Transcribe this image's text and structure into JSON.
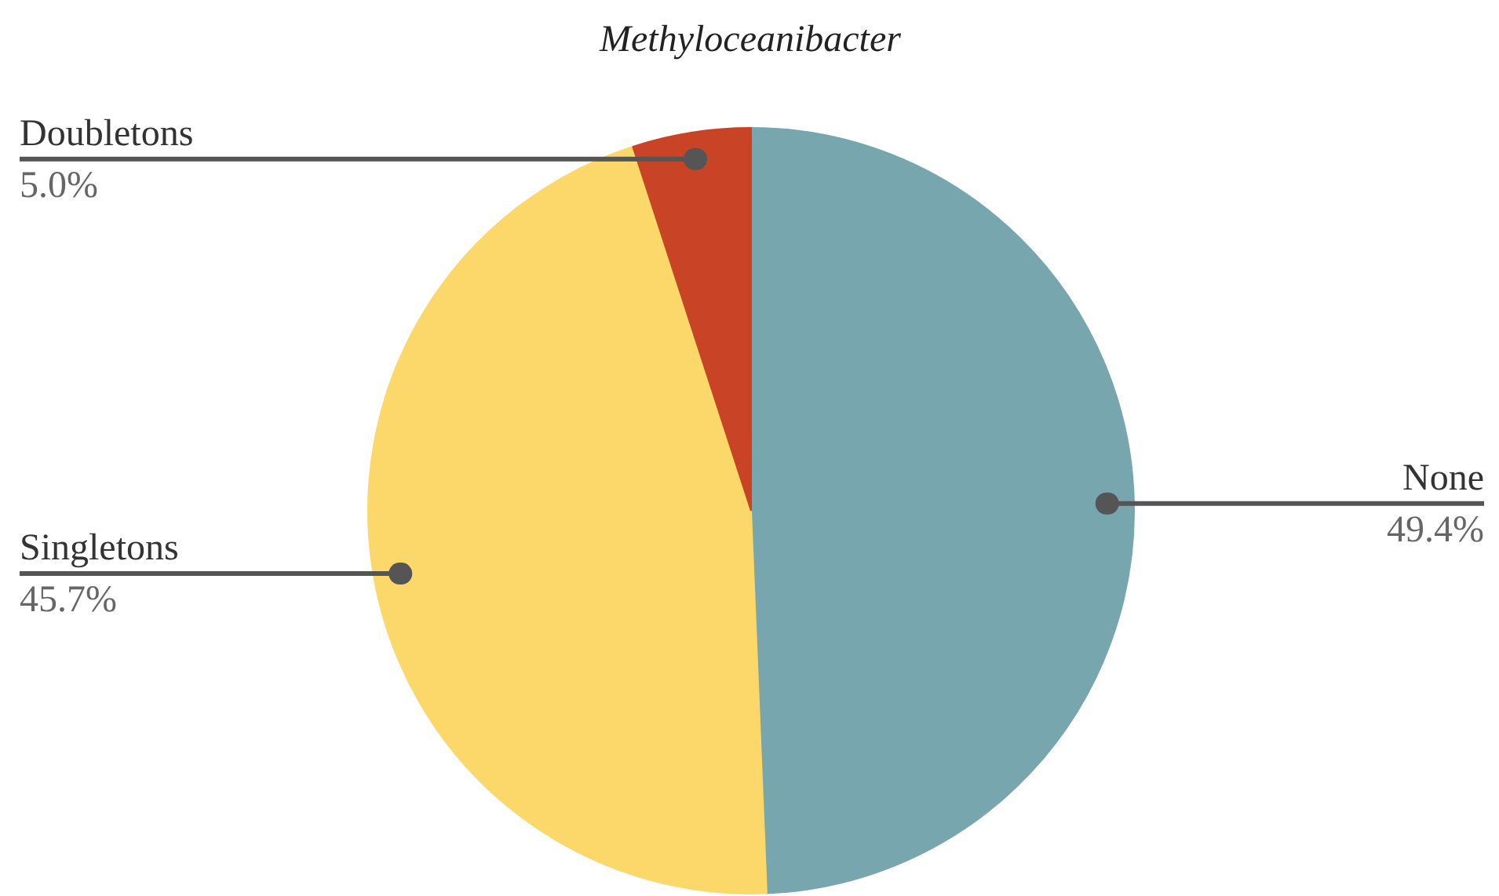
{
  "chart_data": {
    "type": "pie",
    "title": "Methyloceanibacter",
    "categories": [
      "None",
      "Singletons",
      "Doubletons"
    ],
    "values": [
      49.4,
      45.7,
      5.0
    ],
    "colors": [
      "#78a6ae",
      "#fcd86a",
      "#c94426"
    ],
    "value_labels": [
      "49.4%",
      "45.7%",
      "5.0%"
    ]
  }
}
